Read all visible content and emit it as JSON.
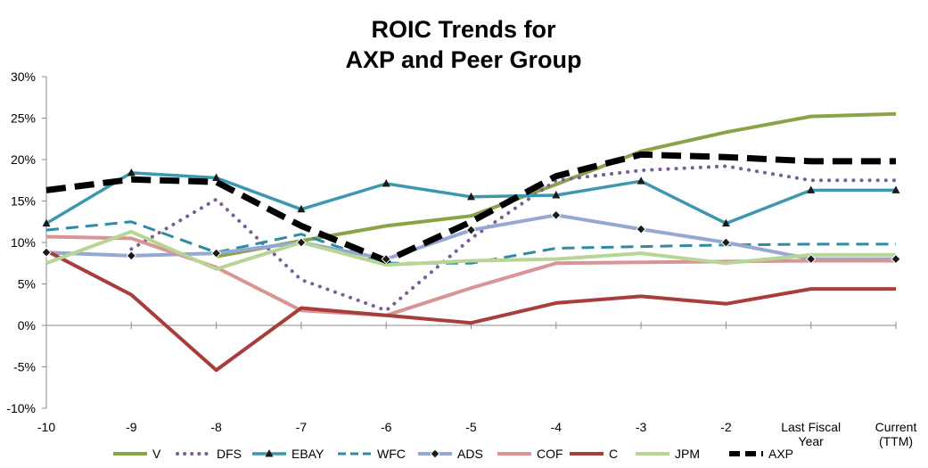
{
  "chart_data": {
    "type": "line",
    "title_lines": [
      "ROIC Trends for",
      "AXP and Peer Group"
    ],
    "x_tick_labels": [
      [
        "-10"
      ],
      [
        "-9"
      ],
      [
        "-8"
      ],
      [
        "-7"
      ],
      [
        "-6"
      ],
      [
        "-5"
      ],
      [
        "-4"
      ],
      [
        "-3"
      ],
      [
        "-2"
      ],
      [
        "Last Fiscal",
        "Year"
      ],
      [
        "Current",
        "(TTM)"
      ]
    ],
    "y_tick_labels": [
      "30%",
      "25%",
      "20%",
      "15%",
      "10%",
      "5%",
      "0%",
      "-5%",
      "-10%"
    ],
    "y_ticks": [
      30,
      25,
      20,
      15,
      10,
      5,
      0,
      -5,
      -10
    ],
    "ylim": [
      -10,
      30
    ],
    "grid": false,
    "legend_position": "bottom",
    "series": [
      {
        "name": "V",
        "color": "#8aa348",
        "style": "solid",
        "width": 4,
        "marker": "none",
        "values": [
          null,
          null,
          8.3,
          10.2,
          12.0,
          13.2,
          17.0,
          21.0,
          23.3,
          25.2,
          25.5
        ]
      },
      {
        "name": "DFS",
        "color": "#7a5d99",
        "style": "dotted",
        "width": 4,
        "marker": "none",
        "values": [
          null,
          9.2,
          15.2,
          5.5,
          1.8,
          10.5,
          17.5,
          18.7,
          19.2,
          17.5,
          17.5
        ]
      },
      {
        "name": "EBAY",
        "color": "#3d97af",
        "style": "solid",
        "width": 3.5,
        "marker": "triangle",
        "values": [
          12.3,
          18.4,
          17.8,
          14.0,
          17.1,
          15.5,
          15.7,
          17.4,
          12.3,
          16.3,
          16.3
        ]
      },
      {
        "name": "WFC",
        "color": "#2f8aa3",
        "style": "dashed",
        "width": 3,
        "marker": "none",
        "values": [
          11.5,
          12.5,
          8.8,
          11.0,
          7.5,
          7.5,
          9.3,
          9.5,
          9.7,
          9.8,
          9.8
        ]
      },
      {
        "name": "ADS",
        "color": "#95a8d1",
        "style": "solid",
        "width": 4,
        "marker": "diamond",
        "values": [
          8.8,
          8.4,
          8.7,
          10.0,
          8.0,
          11.5,
          13.3,
          11.6,
          10.0,
          8.0,
          8.0
        ]
      },
      {
        "name": "COF",
        "color": "#d99594",
        "style": "solid",
        "width": 4,
        "marker": "none",
        "values": [
          10.7,
          10.5,
          7.0,
          1.8,
          1.2,
          4.5,
          7.5,
          7.6,
          7.7,
          7.8,
          7.8
        ]
      },
      {
        "name": "C",
        "color": "#a83d3a",
        "style": "solid",
        "width": 4,
        "marker": "none",
        "values": [
          9.0,
          3.7,
          -5.4,
          2.1,
          1.2,
          0.3,
          2.7,
          3.5,
          2.6,
          4.4,
          4.4
        ]
      },
      {
        "name": "JPM",
        "color": "#b7d595",
        "style": "solid",
        "width": 4,
        "marker": "none",
        "values": [
          7.5,
          11.3,
          6.8,
          10.0,
          7.3,
          7.8,
          8.0,
          8.7,
          7.5,
          8.5,
          8.5
        ]
      },
      {
        "name": "AXP",
        "color": "#000000",
        "style": "dashed",
        "width": 7,
        "marker": "none",
        "values": [
          16.3,
          17.6,
          17.3,
          12.0,
          7.8,
          12.5,
          18.0,
          20.6,
          20.3,
          19.8,
          19.8
        ]
      }
    ]
  }
}
